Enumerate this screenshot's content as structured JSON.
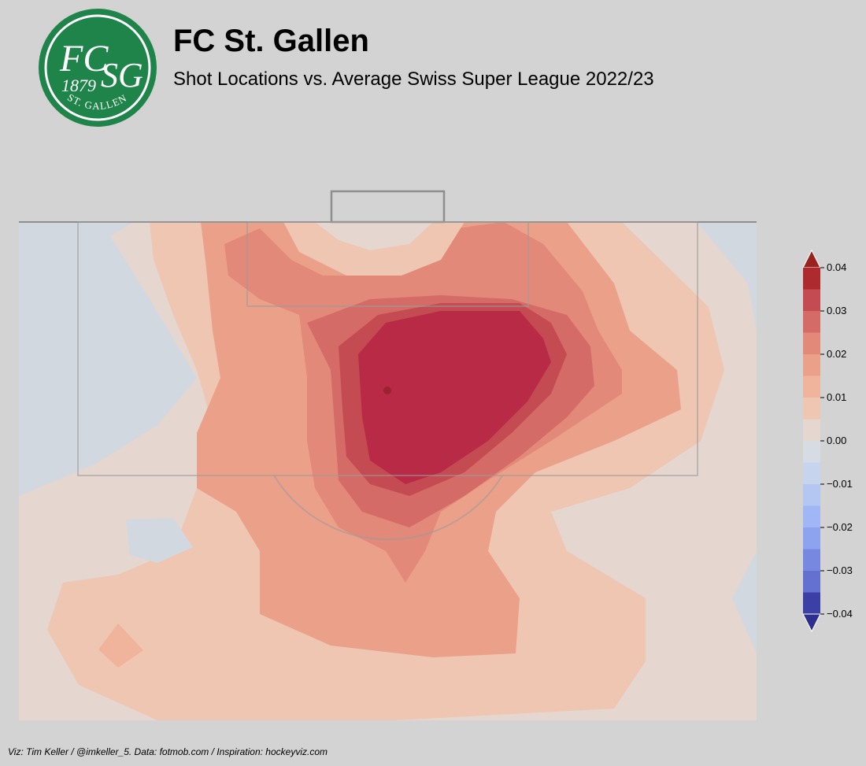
{
  "header": {
    "team": "FC St. Gallen",
    "subtitle": "Shot Locations vs. Average Swiss Super League 2022/23"
  },
  "logo": {
    "text_main_left": "FC",
    "text_main_right": "SG",
    "year": "1879",
    "ring_text": "ST. GALLEN",
    "color": "#1e8449"
  },
  "footer": {
    "credit": "Viz: Tim Keller / @imkeller_5. Data: fotmob.com / Inspiration: hockeyviz.com"
  },
  "chart_data": {
    "type": "heatmap",
    "description_note": "Filled contour of shot-density difference vs league average on a half pitch",
    "colorbar": {
      "ticks": [
        0.04,
        0.03,
        0.02,
        0.01,
        0.0,
        -0.01,
        -0.02,
        -0.03,
        -0.04
      ],
      "tick_labels": [
        "0.04",
        "0.03",
        "0.02",
        "0.01",
        "0.00",
        "−0.01",
        "−0.02",
        "−0.03",
        "−0.04"
      ],
      "range": [
        -0.04,
        0.04
      ],
      "extend": "both",
      "levels_colors": [
        "#ad2a2f",
        "#c44b52",
        "#d56b67",
        "#e2897a",
        "#eba08a",
        "#f0b39c",
        "#eec6b2",
        "#e5d6cf",
        "#d7dbe3",
        "#c6d4ee",
        "#b4c7f3",
        "#a1b6f5",
        "#8da3f0",
        "#7788e0",
        "#6471d0",
        "#3c3fa5"
      ],
      "over_color": "#9a2320",
      "under_color": "#2d2e8e"
    },
    "colors": {
      "max_region": "#b92a46",
      "min_region": "#d2d8e0",
      "background": "#d3d3d3"
    }
  }
}
